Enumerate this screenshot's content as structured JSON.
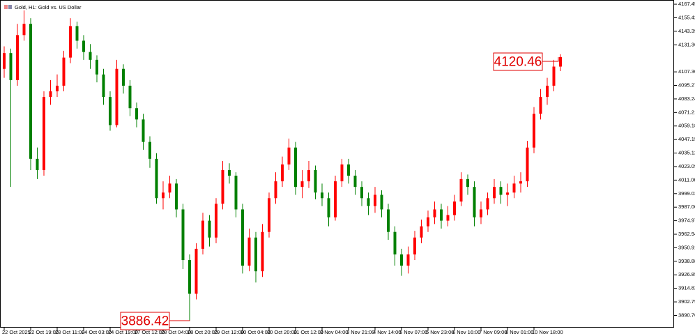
{
  "chart_data": {
    "type": "candlestick",
    "title": "Gold, H1: Gold vs. US Dollar",
    "up_color": "#ff0000",
    "down_color": "#008000",
    "grid": false,
    "ylim": [
      3879.9,
      4171.2
    ],
    "yticks": [
      4167.45,
      4155.42,
      4143.39,
      4131.36,
      {
        "value": 4107.3,
        "label": "4107.30"
      },
      4095.27,
      4083.24,
      4071.21,
      4059.18,
      4047.15,
      4035.12,
      4023.09,
      4011.06,
      3999.03,
      {
        "value": 3987,
        "label": "3987.00"
      },
      3974.97,
      3962.94,
      3950.91,
      3938.88,
      3926.85,
      3914.82,
      3902.79,
      3890.76
    ],
    "categories": [
      "22 Oct 2025",
      null,
      null,
      null,
      "22 Oct 19:00",
      null,
      null,
      null,
      "23 Oct 11:00",
      null,
      null,
      null,
      "24 Oct 03:00",
      null,
      null,
      null,
      "24 Oct 19:00",
      null,
      null,
      null,
      "27 Oct 12:00",
      null,
      null,
      null,
      "28 Oct 04:00",
      null,
      null,
      null,
      "28 Oct 20:00",
      null,
      null,
      null,
      "29 Oct 12:00",
      null,
      null,
      null,
      "30 Oct 04:00",
      null,
      null,
      null,
      "30 Oct 20:00",
      null,
      null,
      null,
      "31 Oct 12:00",
      null,
      null,
      null,
      "3 Nov 04:00",
      null,
      null,
      null,
      "3 Nov 21:00",
      null,
      null,
      null,
      "4 Nov 14:00",
      null,
      null,
      null,
      "5 Nov 07:00",
      null,
      null,
      null,
      "5 Nov 23:00",
      null,
      null,
      null,
      "6 Nov 16:00",
      null,
      null,
      null,
      "7 Nov 09:00",
      null,
      null,
      null,
      "8 Nov 01:00",
      null,
      null,
      null,
      "10 Nov 18:00",
      null,
      null,
      null,
      null
    ],
    "open": [
      4110,
      4124,
      4100,
      4140,
      4150,
      4030,
      4020,
      4085,
      4090,
      4095,
      4120,
      4148,
      4135,
      4125,
      4118,
      4105,
      4085,
      4060,
      4110,
      4095,
      4075,
      4065,
      4045,
      4030,
      3995,
      4000,
      4008,
      3985,
      3940,
      3910,
      3950,
      3975,
      3960,
      3990,
      4020,
      4015,
      3985,
      3935,
      3960,
      3930,
      3965,
      3995,
      4010,
      4025,
      4040,
      4005,
      4010,
      4020,
      4000,
      3995,
      3978,
      4010,
      4025,
      4015,
      4005,
      3995,
      3988,
      3998,
      3985,
      3965,
      3945,
      3935,
      3945,
      3960,
      3970,
      3978,
      3985,
      3975,
      3980,
      3992,
      4012,
      4005,
      3978,
      3985,
      3995,
      4005,
      3998,
      4000,
      4008,
      4010,
      4040,
      4070,
      4085,
      4095,
      4112
    ],
    "high": [
      4130,
      4128,
      4150,
      4162,
      4155,
      4040,
      4090,
      4100,
      4105,
      4126,
      4155,
      4152,
      4140,
      4132,
      4122,
      4110,
      4090,
      4118,
      4114,
      4100,
      4080,
      4070,
      4050,
      4035,
      4010,
      4015,
      4012,
      3990,
      3945,
      3955,
      3982,
      3980,
      3995,
      4028,
      4026,
      4018,
      3990,
      3968,
      3965,
      3972,
      4000,
      4018,
      4032,
      4048,
      4045,
      4020,
      4028,
      4024,
      4008,
      4000,
      4015,
      4030,
      4030,
      4020,
      4010,
      4000,
      4005,
      4002,
      3990,
      3970,
      3950,
      3952,
      3966,
      3976,
      3984,
      3992,
      3990,
      3988,
      3998,
      4018,
      4016,
      4010,
      3992,
      4000,
      4012,
      4010,
      4008,
      4015,
      4018,
      4046,
      4076,
      4092,
      4102,
      4118,
      4123
    ],
    "low": [
      4102,
      4005,
      4095,
      4135,
      4020,
      4012,
      4015,
      4078,
      4085,
      4090,
      4115,
      4128,
      4118,
      4110,
      4098,
      4078,
      4055,
      4058,
      4088,
      4068,
      4058,
      4038,
      4022,
      3990,
      3985,
      3995,
      3978,
      3932,
      3886.42,
      3905,
      3945,
      3952,
      3955,
      3985,
      4008,
      3978,
      3928,
      3930,
      3920,
      3925,
      3960,
      3990,
      4005,
      4020,
      3998,
      3995,
      4004,
      3994,
      3988,
      3970,
      3975,
      4005,
      4008,
      3998,
      3988,
      3980,
      3982,
      3978,
      3958,
      3935,
      3926,
      3928,
      3940,
      3955,
      3965,
      3972,
      3968,
      3970,
      3975,
      3988,
      3998,
      3970,
      3972,
      3980,
      3990,
      3990,
      3988,
      3995,
      4000,
      4005,
      4035,
      4065,
      4078,
      4090,
      4108
    ],
    "close": [
      4124,
      4100,
      4140,
      4150,
      4030,
      4020,
      4085,
      4090,
      4095,
      4120,
      4148,
      4135,
      4125,
      4118,
      4105,
      4085,
      4060,
      4110,
      4095,
      4075,
      4065,
      4045,
      4030,
      3995,
      4000,
      4008,
      3985,
      3940,
      3910,
      3950,
      3975,
      3960,
      3990,
      4020,
      4015,
      3985,
      3935,
      3960,
      3930,
      3965,
      3995,
      4010,
      4025,
      4040,
      4005,
      4010,
      4020,
      4000,
      3995,
      3978,
      4010,
      4025,
      4015,
      4005,
      3995,
      3988,
      3998,
      3985,
      3965,
      3945,
      3935,
      3945,
      3960,
      3970,
      3978,
      3985,
      3975,
      3980,
      3992,
      4012,
      4005,
      3978,
      3985,
      3995,
      4005,
      3998,
      4000,
      4008,
      4010,
      4040,
      4070,
      4085,
      4095,
      4112,
      4120.46
    ],
    "annotations": [
      "4120.46",
      "3886.42"
    ]
  }
}
